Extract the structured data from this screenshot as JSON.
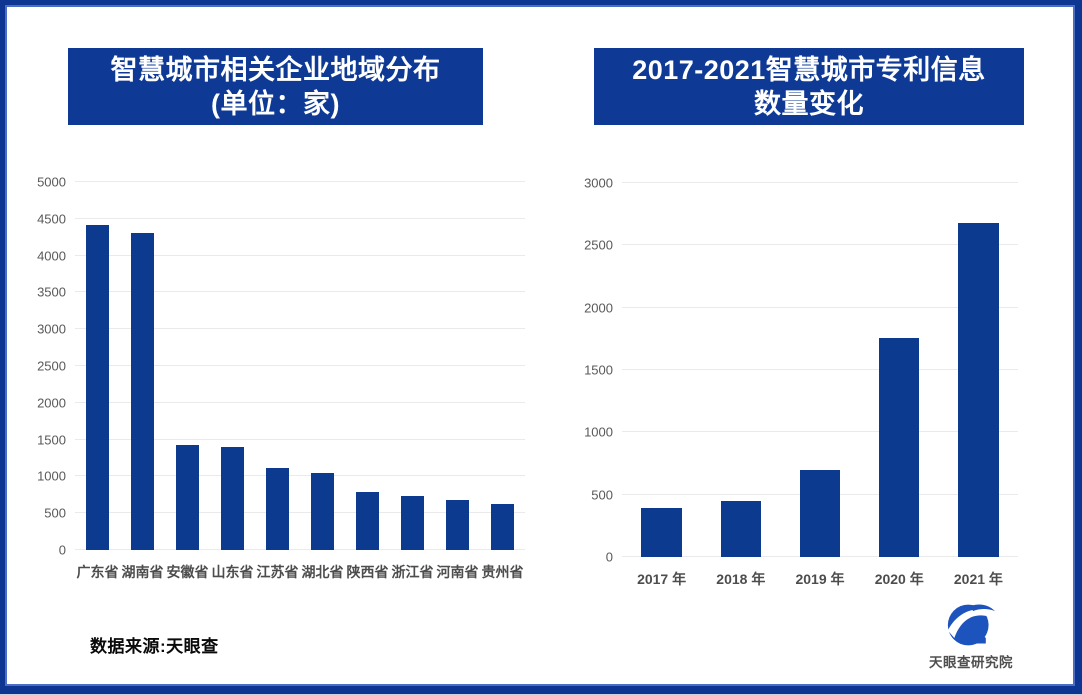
{
  "page": {
    "background": "#ffffff",
    "frame_color": "#0d3692",
    "frame_inner_line_color": "#4d6cc3"
  },
  "footer": {
    "source_label": "数据来源:天眼查",
    "logo": {
      "icon": "tianyancha-eye-icon",
      "text": "天眼查研究院",
      "color": "#1d53bc"
    }
  },
  "chart_data": [
    {
      "type": "bar",
      "title": "智慧城市相关企业地域分布(单位：家)",
      "title_lines": [
        "智慧城市相关企业地域分布",
        "(单位：家)"
      ],
      "categories": [
        "广东省",
        "湖南省",
        "安徽省",
        "山东省",
        "江苏省",
        "湖北省",
        "陕西省",
        "浙江省",
        "河南省",
        "贵州省"
      ],
      "values": [
        4420,
        4310,
        1430,
        1400,
        1110,
        1050,
        790,
        740,
        680,
        630
      ],
      "xlabel": "",
      "ylabel": "",
      "ylim": [
        0,
        5000
      ],
      "ytick_step": 500,
      "grid": true,
      "legend": "none",
      "bar_color": "#0c3a8f",
      "gridline_color": "#eaeaea",
      "tick_label_color": "#595959",
      "category_label_color": "#4d4d4d",
      "title_box_color": "#0e3a96"
    },
    {
      "type": "bar",
      "title": "2017-2021智慧城市专利信息数量变化",
      "title_lines": [
        "2017-2021智慧城市专利信息",
        "数量变化"
      ],
      "categories": [
        "2017 年",
        "2018 年",
        "2019 年",
        "2020 年",
        "2021 年"
      ],
      "values": [
        390,
        450,
        695,
        1760,
        2680
      ],
      "xlabel": "",
      "ylabel": "",
      "ylim": [
        0,
        3000
      ],
      "ytick_step": 500,
      "grid": true,
      "legend": "none",
      "bar_color": "#0c3a8f",
      "gridline_color": "#eaeaea",
      "tick_label_color": "#595959",
      "category_label_color": "#4d4d4d",
      "title_box_color": "#0e3a96"
    }
  ]
}
